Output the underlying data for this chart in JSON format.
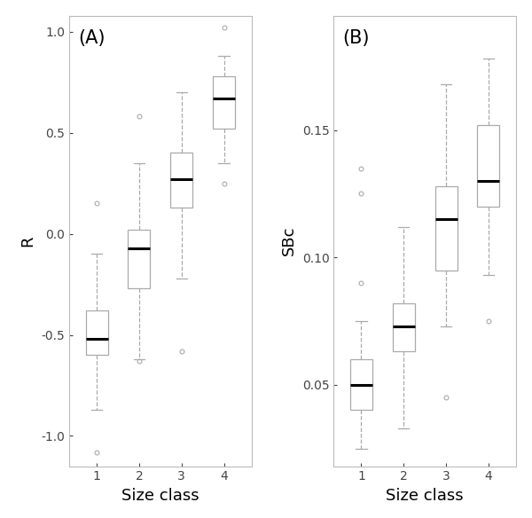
{
  "panel_A": {
    "label": "(A)",
    "ylabel": "R",
    "xlabel": "Size class",
    "ylim": [
      -1.15,
      1.08
    ],
    "yticks": [
      -1.0,
      -0.5,
      0.0,
      0.5,
      1.0
    ],
    "ytick_labels": [
      "-1.0",
      "-0.5",
      "0.0",
      "0.5",
      "1.0"
    ],
    "boxes": [
      {
        "x": 1,
        "q1": -0.6,
        "median": -0.52,
        "q3": -0.38,
        "whislo": -0.87,
        "whishi": -0.1,
        "fliers": [
          -1.08,
          0.15
        ]
      },
      {
        "x": 2,
        "q1": -0.27,
        "median": -0.07,
        "q3": 0.02,
        "whislo": -0.62,
        "whishi": 0.35,
        "fliers": [
          0.58,
          -0.63
        ]
      },
      {
        "x": 3,
        "q1": 0.13,
        "median": 0.27,
        "q3": 0.4,
        "whislo": -0.22,
        "whishi": 0.7,
        "fliers": [
          -0.58
        ]
      },
      {
        "x": 4,
        "q1": 0.52,
        "median": 0.67,
        "q3": 0.78,
        "whislo": 0.35,
        "whishi": 0.88,
        "fliers": [
          1.02,
          0.25
        ]
      }
    ]
  },
  "panel_B": {
    "label": "(B)",
    "ylabel": "SBc",
    "xlabel": "Size class",
    "ylim": [
      0.018,
      0.195
    ],
    "yticks": [
      0.05,
      0.1,
      0.15
    ],
    "ytick_labels": [
      "0.05",
      "0.10",
      "0.15"
    ],
    "boxes": [
      {
        "x": 1,
        "q1": 0.04,
        "median": 0.05,
        "q3": 0.06,
        "whislo": 0.025,
        "whishi": 0.075,
        "fliers": [
          0.135,
          0.125,
          0.09
        ]
      },
      {
        "x": 2,
        "q1": 0.063,
        "median": 0.073,
        "q3": 0.082,
        "whislo": 0.033,
        "whishi": 0.112,
        "fliers": []
      },
      {
        "x": 3,
        "q1": 0.095,
        "median": 0.115,
        "q3": 0.128,
        "whislo": 0.073,
        "whishi": 0.168,
        "fliers": [
          0.045
        ]
      },
      {
        "x": 4,
        "q1": 0.12,
        "median": 0.13,
        "q3": 0.152,
        "whislo": 0.093,
        "whishi": 0.178,
        "fliers": [
          0.075
        ]
      }
    ]
  },
  "box_edgecolor": "#aaaaaa",
  "median_color": "black",
  "whisker_color": "#aaaaaa",
  "flier_color": "#aaaaaa",
  "bg_color": "white",
  "tick_fontsize": 10,
  "axis_label_fontsize": 13,
  "panel_label_fontsize": 15
}
